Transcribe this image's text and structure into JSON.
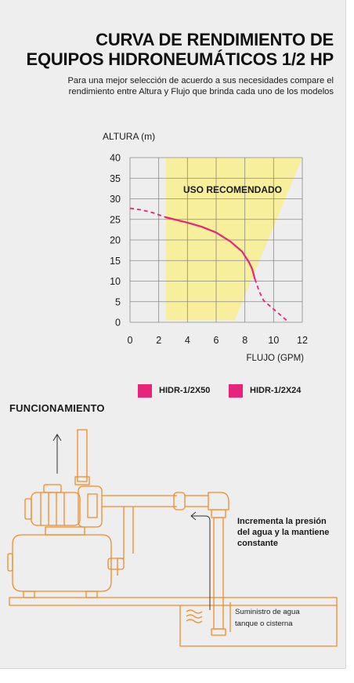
{
  "title": {
    "line1": "CURVA DE RENDIMIENTO DE",
    "line2": "EQUIPOS HIDRONEUMÁTICOS 1/2 HP"
  },
  "subtitle": {
    "line1": "Para una mejor selección de acuerdo a sus necesidades compare el",
    "line2": "rendimiento entre Altura y Flujo que brinda cada uno de los modelos"
  },
  "colors": {
    "curve": "#e8247a",
    "recommended_zone": "#f7ef9c",
    "diagram_line": "#f08c28",
    "grid": "#8a8a8a"
  },
  "chart_data": {
    "type": "line",
    "xlabel": "FLUJO (GPM)",
    "ylabel": "ALTURA (m)",
    "xlim": [
      0,
      12
    ],
    "ylim": [
      0,
      40
    ],
    "x_ticks": [
      0,
      2,
      4,
      6,
      8,
      10,
      12
    ],
    "y_ticks": [
      0,
      5,
      10,
      15,
      20,
      25,
      30,
      35,
      40
    ],
    "grid": true,
    "annotation": "USO RECOMENDADO",
    "recommended_zone": [
      [
        2.5,
        0.5
      ],
      [
        2.5,
        40
      ],
      [
        12,
        40
      ],
      [
        7.3,
        0.5
      ]
    ],
    "series": [
      {
        "solid": [
          [
            2.5,
            25.5
          ],
          [
            4,
            24.2
          ],
          [
            5,
            23.2
          ],
          [
            6,
            21.8
          ],
          [
            7,
            19.6
          ],
          [
            7.8,
            17.2
          ],
          [
            8.3,
            14.5
          ],
          [
            8.5,
            13.0
          ],
          [
            8.7,
            10.5
          ]
        ],
        "dashed_start": [
          [
            0,
            27.7
          ],
          [
            0.8,
            27.3
          ],
          [
            1.6,
            26.6
          ],
          [
            2.5,
            25.5
          ]
        ],
        "dashed_end": [
          [
            8.7,
            10.5
          ],
          [
            9.0,
            7.5
          ],
          [
            9.3,
            5.3
          ],
          [
            9.8,
            3.8
          ],
          [
            10.4,
            2.0
          ],
          [
            11.0,
            0.2
          ]
        ]
      }
    ],
    "legend": [
      "HIDR-1/2X50",
      "HIDR-1/2X24"
    ],
    "legend_position": "bottom"
  },
  "diagram": {
    "title": "FUNCIONAMIENTO",
    "note": {
      "line1": "Incrementa la presión",
      "line2": "del agua y la mantiene",
      "line3": "constante"
    },
    "supply": {
      "line1": "Suministro de agua",
      "line2": "tanque o cisterna"
    }
  }
}
